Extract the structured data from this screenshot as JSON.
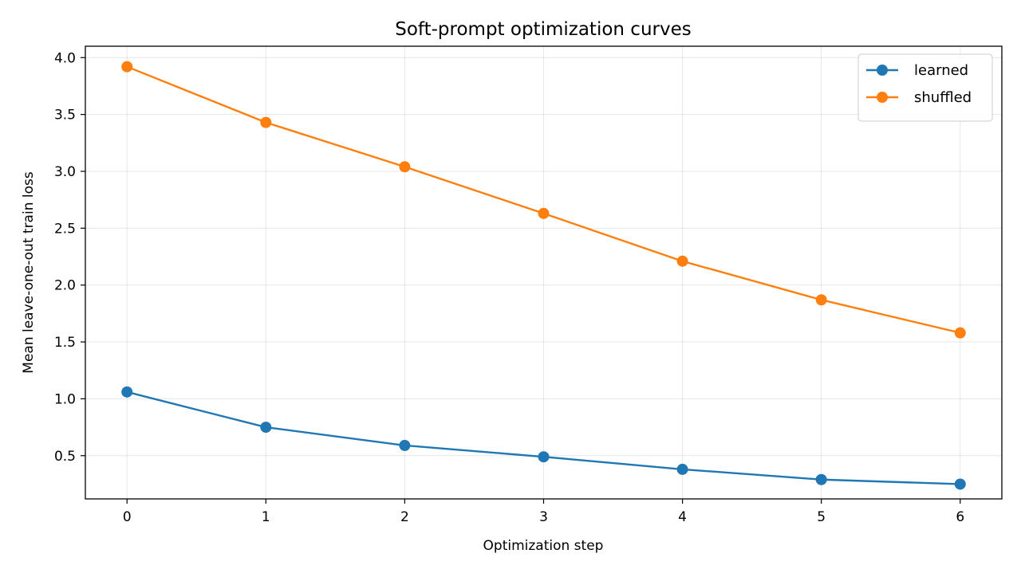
{
  "chart_data": {
    "type": "line",
    "title": "Soft-prompt optimization curves",
    "xlabel": "Optimization step",
    "ylabel": "Mean leave-one-out train loss",
    "x": [
      0,
      1,
      2,
      3,
      4,
      5,
      6
    ],
    "xlim": [
      -0.3,
      6.3
    ],
    "ylim": [
      0.12,
      4.1
    ],
    "xticks": [
      0,
      1,
      2,
      3,
      4,
      5,
      6
    ],
    "yticks": [
      0.5,
      1.0,
      1.5,
      2.0,
      2.5,
      3.0,
      3.5,
      4.0
    ],
    "ytick_labels": [
      "0.5",
      "1.0",
      "1.5",
      "2.0",
      "2.5",
      "3.0",
      "3.5",
      "4.0"
    ],
    "grid": true,
    "legend_position": "top-right",
    "series": [
      {
        "name": "learned",
        "color": "#1f77b4",
        "marker": "circle",
        "values": [
          1.06,
          0.75,
          0.59,
          0.49,
          0.38,
          0.29,
          0.25
        ]
      },
      {
        "name": "shuffled",
        "color": "#ff7f0e",
        "marker": "circle",
        "values": [
          3.92,
          3.43,
          3.04,
          2.63,
          2.21,
          1.87,
          1.58
        ]
      }
    ]
  }
}
